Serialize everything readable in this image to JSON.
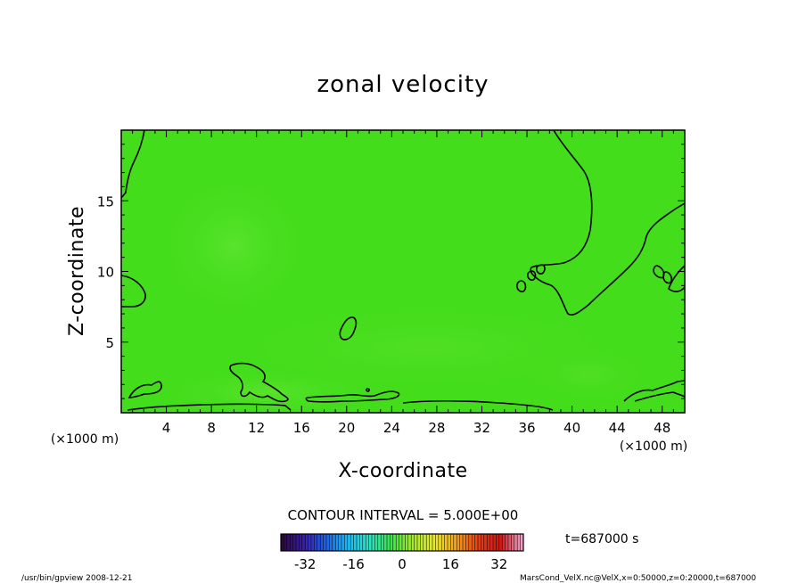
{
  "chart_data": {
    "type": "heatmap",
    "title": "zonal velocity",
    "xlabel": "X-coordinate",
    "ylabel": "Z-coordinate",
    "x_unit_label": "(×1000 m)",
    "y_unit_label": "(×1000 m)",
    "xlim": [
      0,
      50
    ],
    "ylim": [
      0,
      20
    ],
    "x_ticks": [
      4,
      8,
      12,
      16,
      20,
      24,
      28,
      32,
      36,
      40,
      44,
      48
    ],
    "y_ticks": [
      5,
      10,
      15
    ],
    "field_color": "#44dd1c",
    "contour_interval_text": "CONTOUR INTERVAL = 5.000E+00",
    "contour_interval": 5.0,
    "time_label": "t=687000 s",
    "colorbar": {
      "range": [
        -40,
        40
      ],
      "ticks": [
        -32,
        -16,
        0,
        16,
        32
      ],
      "colormap": [
        "#2a0a3a",
        "#3a1fa8",
        "#2060e0",
        "#20b8f0",
        "#30e0c0",
        "#40e050",
        "#a8e830",
        "#e8e830",
        "#f0a020",
        "#e04018",
        "#c81818",
        "#f0a0c8"
      ]
    }
  },
  "footer": {
    "left": "/usr/bin/gpview  2008-12-21",
    "right": "MarsCond_VelX.nc@VelX,x=0:50000,z=0:20000,t=687000"
  }
}
